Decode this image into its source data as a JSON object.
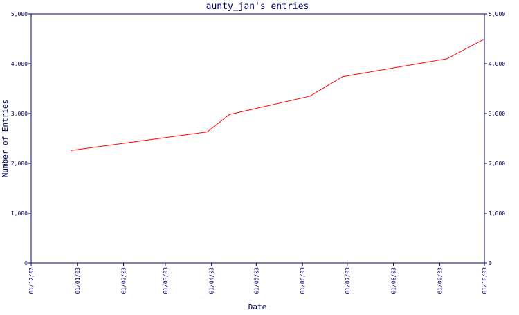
{
  "chart_data": {
    "type": "line",
    "title": "aunty_jan's entries",
    "xlabel": "Date",
    "ylabel": "Number of Entries",
    "ylim": [
      0,
      5000
    ],
    "y_ticks": [
      "0",
      "1,000",
      "2,000",
      "3,000",
      "4,000",
      "5,000"
    ],
    "y_tick_values": [
      0,
      1000,
      2000,
      3000,
      4000,
      5000
    ],
    "x_ticks": [
      "01/12/02",
      "01/01/03",
      "01/02/03",
      "01/03/03",
      "01/04/03",
      "01/05/03",
      "01/06/03",
      "01/07/03",
      "01/08/03",
      "01/09/03",
      "01/10/03"
    ],
    "x_tick_dates": [
      "2002-12-01",
      "2003-01-01",
      "2003-02-01",
      "2003-03-01",
      "2003-04-01",
      "2003-05-01",
      "2003-06-01",
      "2003-07-01",
      "2003-08-01",
      "2003-09-01",
      "2003-10-01"
    ],
    "xlim": [
      "2002-12-01",
      "2003-10-01"
    ],
    "grid": false,
    "series": [
      {
        "color": "#ff0000",
        "points": [
          {
            "x": "2002-12-28",
            "y": 2260
          },
          {
            "x": "2003-03-29",
            "y": 2630
          },
          {
            "x": "2003-04-13",
            "y": 2980
          },
          {
            "x": "2003-06-06",
            "y": 3350
          },
          {
            "x": "2003-06-28",
            "y": 3740
          },
          {
            "x": "2003-09-06",
            "y": 4100
          },
          {
            "x": "2003-09-30",
            "y": 4480
          }
        ]
      }
    ],
    "axis_color": "#000066"
  }
}
